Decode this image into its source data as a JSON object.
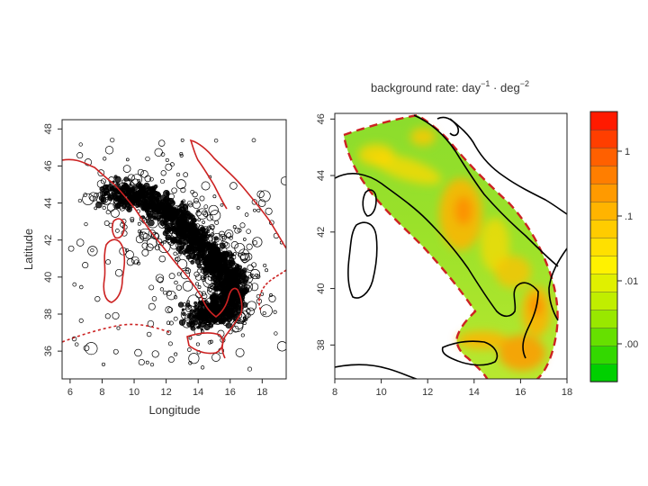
{
  "chart_data": [
    {
      "type": "scatter",
      "xlabel": "Longitude",
      "ylabel": "Latitude",
      "xlim": [
        5.5,
        19.5
      ],
      "ylim": [
        34.5,
        48.5
      ],
      "x_ticks": [
        "6",
        "8",
        "10",
        "12",
        "14",
        "16",
        "18"
      ],
      "y_ticks": [
        "36",
        "38",
        "40",
        "42",
        "44",
        "46",
        "48"
      ],
      "grid": false,
      "colors": {
        "points": "#000000",
        "coastline": "#cc2222"
      }
    },
    {
      "type": "heatmap",
      "title_main": "background rate: day",
      "title_sup1": "−1",
      "title_dot": " · deg",
      "title_sup2": "−2",
      "xlim": [
        8,
        18
      ],
      "ylim": [
        36.8,
        46.2
      ],
      "x_ticks": [
        "8",
        "10",
        "12",
        "14",
        "16",
        "18"
      ],
      "y_ticks": [
        "38",
        "40",
        "42",
        "44",
        "46"
      ],
      "grid": false,
      "colorbar": {
        "tick_labels": [
          "1",
          ".1",
          ".01",
          ".00"
        ],
        "colors": [
          "#00d000",
          "#33d800",
          "#66e000",
          "#99e800",
          "#c0ee00",
          "#e0f000",
          "#fff200",
          "#ffe000",
          "#ffcc00",
          "#ffb400",
          "#ff9a00",
          "#ff7e00",
          "#ff6000",
          "#ff3e00",
          "#ff1a00"
        ]
      },
      "colors": {
        "dashed_region": "#cc2222",
        "coastline": "#000000"
      }
    }
  ]
}
